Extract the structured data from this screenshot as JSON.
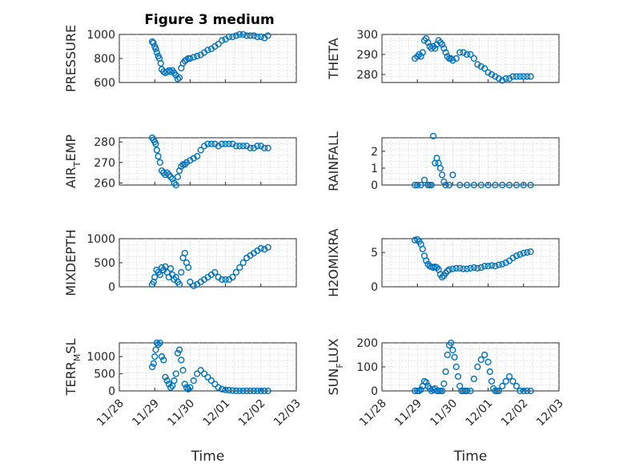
{
  "chart_data": [
    {
      "type": "scatter",
      "title": "Figure 3 medium",
      "ylabel": "PRESSURE",
      "ylim": [
        600,
        1000
      ],
      "yticks": [
        "1000",
        "800",
        "600"
      ],
      "xticks": [],
      "xlabel": "",
      "color": "#0072bd",
      "grid": true,
      "series": [
        {
          "x": [
            0.93,
            0.96,
            1.0,
            1.03,
            1.06,
            1.1,
            1.13,
            1.17,
            1.2,
            1.25,
            1.3,
            1.35,
            1.4,
            1.45,
            1.5,
            1.55,
            1.6,
            1.65,
            1.7,
            1.75,
            1.8,
            1.85,
            1.9,
            1.95,
            2.0,
            2.1,
            2.2,
            2.3,
            2.4,
            2.5,
            2.6,
            2.7,
            2.8,
            2.9,
            3.0,
            3.1,
            3.2,
            3.3,
            3.4,
            3.5,
            3.6,
            3.7,
            3.8,
            3.9,
            4.0,
            4.1,
            4.2
          ],
          "y": [
            940,
            930,
            900,
            880,
            850,
            820,
            800,
            760,
            710,
            690,
            680,
            690,
            700,
            690,
            700,
            680,
            660,
            630,
            640,
            720,
            760,
            780,
            790,
            800,
            800,
            810,
            820,
            830,
            850,
            870,
            880,
            900,
            920,
            950,
            960,
            980,
            980,
            990,
            1000,
            1000,
            990,
            990,
            990,
            980,
            980,
            970,
            990
          ]
        }
      ]
    },
    {
      "type": "scatter",
      "title": "",
      "ylabel": "THETA",
      "ylim": [
        276,
        300
      ],
      "yticks": [
        "300",
        "290",
        "280"
      ],
      "xticks": [],
      "xlabel": "",
      "color": "#0072bd",
      "grid": true,
      "series": [
        {
          "x": [
            0.93,
            1.0,
            1.05,
            1.1,
            1.15,
            1.2,
            1.25,
            1.3,
            1.35,
            1.4,
            1.45,
            1.5,
            1.55,
            1.6,
            1.65,
            1.7,
            1.75,
            1.8,
            1.85,
            1.9,
            1.95,
            2.0,
            2.1,
            2.2,
            2.3,
            2.4,
            2.5,
            2.6,
            2.7,
            2.8,
            2.9,
            3.0,
            3.1,
            3.2,
            3.3,
            3.4,
            3.5,
            3.6,
            3.7,
            3.8,
            3.9,
            4.0,
            4.1,
            4.2
          ],
          "y": [
            288,
            289,
            290,
            289,
            291,
            297,
            298,
            296,
            294,
            293,
            294,
            293,
            295,
            297,
            296,
            295,
            293,
            291,
            289,
            288,
            288,
            287,
            288,
            291,
            291,
            290,
            290,
            288,
            285,
            284,
            283,
            281,
            280,
            279,
            278,
            277,
            278,
            278,
            279,
            279,
            279,
            279,
            279,
            279
          ]
        }
      ]
    },
    {
      "type": "scatter",
      "title": "",
      "ylabel": "AIR_TEMP",
      "ylim": [
        259,
        282
      ],
      "yticks": [
        "280",
        "270",
        "260"
      ],
      "xticks": [],
      "xlabel": "",
      "color": "#0072bd",
      "grid": true,
      "series": [
        {
          "x": [
            0.93,
            0.97,
            1.0,
            1.03,
            1.06,
            1.1,
            1.15,
            1.2,
            1.25,
            1.3,
            1.35,
            1.4,
            1.45,
            1.5,
            1.55,
            1.6,
            1.65,
            1.7,
            1.75,
            1.8,
            1.85,
            1.9,
            2.0,
            2.1,
            2.2,
            2.3,
            2.4,
            2.5,
            2.6,
            2.7,
            2.8,
            2.9,
            3.0,
            3.1,
            3.2,
            3.3,
            3.4,
            3.5,
            3.6,
            3.7,
            3.8,
            3.9,
            4.0,
            4.1,
            4.2
          ],
          "y": [
            282,
            281,
            280,
            279,
            276,
            273,
            270,
            266,
            265,
            264,
            265,
            264,
            263,
            262,
            260,
            259,
            263,
            266,
            268,
            269,
            269,
            270,
            271,
            272,
            273,
            276,
            278,
            279,
            279,
            279,
            278,
            279,
            279,
            279,
            279,
            278,
            278,
            278,
            278,
            277,
            277,
            278,
            278,
            277,
            277
          ]
        }
      ]
    },
    {
      "type": "scatter",
      "title": "",
      "ylabel": "RAINFALL",
      "ylim": [
        0,
        2.8
      ],
      "yticks": [
        "2",
        "1",
        "0"
      ],
      "xticks": [],
      "xlabel": "",
      "color": "#0072bd",
      "grid": true,
      "series": [
        {
          "x": [
            0.93,
            1.0,
            1.1,
            1.2,
            1.3,
            1.35,
            1.4,
            1.45,
            1.5,
            1.55,
            1.6,
            1.65,
            1.7,
            1.75,
            1.8,
            1.9,
            2.0,
            2.2,
            2.4,
            2.6,
            2.8,
            3.0,
            3.2,
            3.4,
            3.6,
            3.8,
            4.0,
            4.2
          ],
          "y": [
            0,
            0,
            0,
            0.3,
            0,
            0,
            0,
            2.9,
            1.3,
            1.6,
            1.3,
            1.0,
            0.6,
            0.2,
            0,
            0,
            0.6,
            0,
            0,
            0,
            0,
            0,
            0,
            0,
            0,
            0,
            0,
            0
          ]
        }
      ]
    },
    {
      "type": "scatter",
      "title": "",
      "ylabel": "MIXDEPTH",
      "ylim": [
        0,
        1000
      ],
      "yticks": [
        "1000",
        "500",
        "0"
      ],
      "xticks": [],
      "xlabel": "",
      "color": "#0072bd",
      "grid": true,
      "series": [
        {
          "x": [
            0.93,
            0.97,
            1.0,
            1.05,
            1.1,
            1.15,
            1.2,
            1.25,
            1.3,
            1.35,
            1.4,
            1.45,
            1.5,
            1.55,
            1.6,
            1.65,
            1.7,
            1.75,
            1.8,
            1.85,
            1.9,
            1.95,
            2.0,
            2.1,
            2.2,
            2.3,
            2.4,
            2.5,
            2.6,
            2.7,
            2.8,
            2.9,
            3.0,
            3.1,
            3.2,
            3.3,
            3.4,
            3.5,
            3.6,
            3.7,
            3.8,
            3.9,
            4.0,
            4.1,
            4.2
          ],
          "y": [
            50,
            100,
            200,
            350,
            300,
            250,
            400,
            350,
            420,
            300,
            200,
            380,
            250,
            150,
            200,
            100,
            50,
            300,
            600,
            700,
            500,
            400,
            100,
            20,
            50,
            100,
            150,
            200,
            250,
            300,
            200,
            150,
            150,
            150,
            200,
            300,
            400,
            500,
            600,
            650,
            700,
            750,
            800,
            780,
            820
          ]
        }
      ]
    },
    {
      "type": "scatter",
      "title": "",
      "ylabel": "H2OMIXRA",
      "ylim": [
        0,
        7
      ],
      "yticks": [
        "5",
        "0"
      ],
      "xticks": [],
      "xlabel": "",
      "color": "#0072bd",
      "grid": true,
      "series": [
        {
          "x": [
            0.93,
            1.0,
            1.05,
            1.1,
            1.15,
            1.2,
            1.25,
            1.3,
            1.35,
            1.4,
            1.45,
            1.5,
            1.55,
            1.6,
            1.65,
            1.7,
            1.75,
            1.8,
            1.85,
            1.9,
            2.0,
            2.1,
            2.2,
            2.3,
            2.4,
            2.5,
            2.6,
            2.7,
            2.8,
            2.9,
            3.0,
            3.1,
            3.2,
            3.3,
            3.4,
            3.5,
            3.6,
            3.7,
            3.8,
            3.9,
            4.0,
            4.1,
            4.2
          ],
          "y": [
            6.8,
            6.9,
            6.6,
            6.2,
            5.5,
            4.5,
            3.8,
            3.3,
            3.0,
            2.9,
            2.8,
            2.9,
            2.8,
            2.5,
            1.8,
            1.4,
            1.6,
            2.0,
            2.3,
            2.5,
            2.6,
            2.7,
            2.7,
            2.6,
            2.6,
            2.7,
            2.8,
            2.7,
            2.8,
            3.0,
            3.0,
            3.1,
            3.0,
            3.2,
            3.3,
            3.5,
            3.8,
            4.2,
            4.5,
            4.7,
            4.9,
            5.0,
            5.1
          ]
        }
      ]
    },
    {
      "type": "scatter",
      "title": "",
      "ylabel": "TERR_MSL",
      "ylim": [
        0,
        1400
      ],
      "yticks": [
        "1000",
        "500",
        "0"
      ],
      "xticks": [
        "11/28",
        "11/29",
        "11/30",
        "12/01",
        "12/02",
        "12/03"
      ],
      "xlabel": "Time",
      "color": "#0072bd",
      "grid": true,
      "series": [
        {
          "x": [
            0.93,
            0.97,
            1.0,
            1.03,
            1.06,
            1.1,
            1.15,
            1.2,
            1.25,
            1.3,
            1.35,
            1.4,
            1.45,
            1.5,
            1.55,
            1.6,
            1.65,
            1.7,
            1.75,
            1.8,
            1.85,
            1.9,
            1.95,
            2.0,
            2.1,
            2.2,
            2.3,
            2.4,
            2.5,
            2.6,
            2.7,
            2.8,
            2.9,
            3.0,
            3.1,
            3.2,
            3.3,
            3.4,
            3.5,
            3.6,
            3.7,
            3.8,
            3.9,
            4.0,
            4.1,
            4.2
          ],
          "y": [
            700,
            800,
            1000,
            1200,
            1400,
            1350,
            1400,
            1000,
            900,
            400,
            300,
            200,
            100,
            150,
            300,
            500,
            1100,
            1200,
            900,
            600,
            200,
            100,
            50,
            100,
            300,
            500,
            600,
            500,
            400,
            300,
            200,
            100,
            50,
            30,
            20,
            10,
            0,
            0,
            0,
            0,
            0,
            0,
            0,
            0,
            0,
            0
          ]
        }
      ]
    },
    {
      "type": "scatter",
      "title": "",
      "ylabel": "SUN_FLUX",
      "ylim": [
        0,
        200
      ],
      "yticks": [
        "200",
        "100",
        "0"
      ],
      "xticks": [
        "11/28",
        "11/29",
        "11/30",
        "12/01",
        "12/02",
        "12/03"
      ],
      "xlabel": "Time",
      "color": "#0072bd",
      "grid": true,
      "series": [
        {
          "x": [
            0.93,
            1.0,
            1.05,
            1.1,
            1.15,
            1.2,
            1.25,
            1.3,
            1.35,
            1.4,
            1.45,
            1.5,
            1.55,
            1.6,
            1.65,
            1.7,
            1.75,
            1.8,
            1.85,
            1.9,
            1.95,
            2.0,
            2.05,
            2.1,
            2.15,
            2.2,
            2.25,
            2.3,
            2.35,
            2.4,
            2.5,
            2.6,
            2.7,
            2.8,
            2.9,
            3.0,
            3.05,
            3.1,
            3.15,
            3.2,
            3.25,
            3.3,
            3.4,
            3.5,
            3.6,
            3.7,
            3.8,
            3.9,
            4.0,
            4.1,
            4.2
          ],
          "y": [
            0,
            0,
            0,
            5,
            20,
            40,
            35,
            20,
            10,
            0,
            5,
            10,
            0,
            0,
            0,
            0,
            30,
            80,
            150,
            190,
            200,
            170,
            140,
            100,
            60,
            20,
            0,
            0,
            0,
            0,
            0,
            50,
            100,
            130,
            150,
            120,
            80,
            40,
            10,
            0,
            0,
            0,
            20,
            40,
            60,
            40,
            20,
            0,
            0,
            0,
            0
          ]
        }
      ]
    }
  ],
  "panels_labels": {
    "title": "Figure 3 medium",
    "y_main": [
      "PRESSURE",
      "THETA",
      "AIR",
      "RAINFALL",
      "MIXDEPTH",
      "H2OMIXRA",
      "TERR",
      "SUN"
    ],
    "y_sub": [
      "",
      "",
      "T",
      "",
      "",
      "",
      "M",
      "F"
    ],
    "y_tail": [
      "",
      "",
      "EMP",
      "",
      "",
      "",
      "SL",
      "LUX"
    ],
    "xlabel": "Time"
  }
}
